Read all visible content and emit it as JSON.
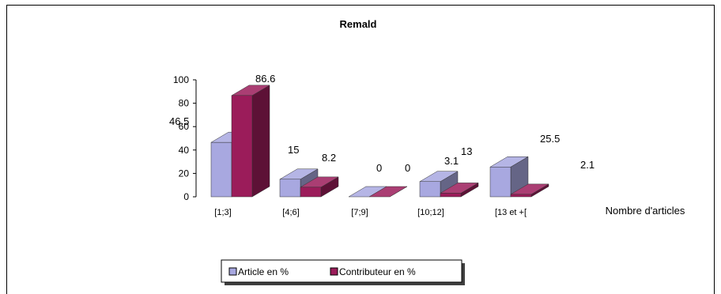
{
  "chart_data": {
    "type": "bar",
    "title": "Remald",
    "xlabel": "Nombre d'articles",
    "ylabel": "",
    "categories": [
      "[1;3]",
      "[4;6]",
      "[7;9]",
      "[10;12]",
      "[13 et +["
    ],
    "series": [
      {
        "name": "Article en %",
        "values": [
          46.5,
          15,
          0,
          13,
          25.5
        ],
        "labels": [
          "46.5",
          "15",
          "0",
          "13",
          "25.5"
        ],
        "color": "#a8a8e0"
      },
      {
        "name": "Contributeur en %",
        "values": [
          86.6,
          8.2,
          0,
          3.1,
          2.1
        ],
        "labels": [
          "86.6",
          "8.2",
          "0",
          "3.1",
          "2.1"
        ],
        "color": "#9b1c5a"
      }
    ],
    "ylim": [
      0,
      100
    ],
    "yticks": [
      0,
      20,
      40,
      60,
      80,
      100
    ],
    "grid": false,
    "legend": "bottom",
    "three_d": true
  }
}
